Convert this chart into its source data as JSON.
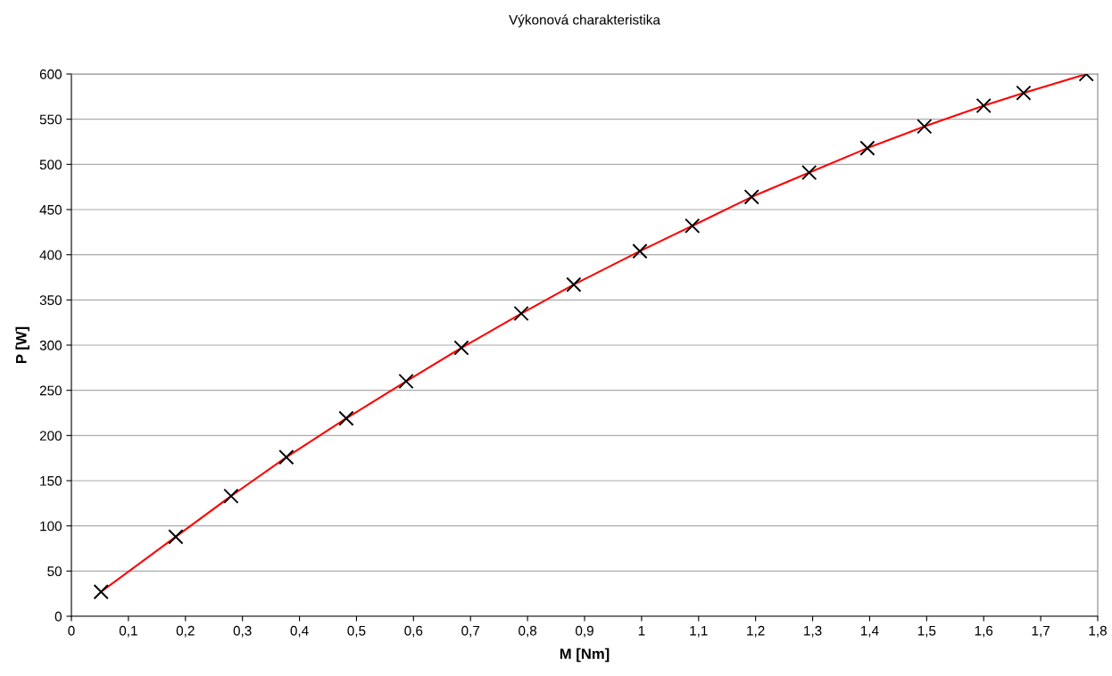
{
  "chart_data": {
    "type": "line",
    "title": "Výkonová charakteristika",
    "xlabel": "M [Nm]",
    "ylabel": "P [W]",
    "x": [
      0.052,
      0.183,
      0.28,
      0.377,
      0.482,
      0.587,
      0.684,
      0.789,
      0.881,
      0.997,
      1.089,
      1.193,
      1.294,
      1.396,
      1.496,
      1.6,
      1.67,
      1.78
    ],
    "series": [
      {
        "color": "#ff0000",
        "values": [
          27,
          88,
          133,
          176,
          219,
          260,
          297,
          335,
          367,
          404,
          432,
          464,
          491,
          518,
          542,
          565,
          579,
          600
        ]
      }
    ],
    "xlim": [
      0,
      1.8
    ],
    "ylim": [
      0,
      600
    ],
    "xticks": [
      0,
      {
        "value": 0.1,
        "label": "0,1"
      },
      {
        "value": 0.2,
        "label": "0,2"
      },
      {
        "value": 0.3,
        "label": "0,3"
      },
      {
        "value": 0.4,
        "label": "0,4"
      },
      {
        "value": 0.5,
        "label": "0,5"
      },
      {
        "value": 0.6,
        "label": "0,6"
      },
      {
        "value": 0.7,
        "label": "0,7"
      },
      {
        "value": 0.8,
        "label": "0,8"
      },
      {
        "value": 0.9,
        "label": "0,9"
      },
      1,
      {
        "value": 1.1,
        "label": "1,1"
      },
      {
        "value": 1.2,
        "label": "1,2"
      },
      {
        "value": 1.3,
        "label": "1,3"
      },
      {
        "value": 1.4,
        "label": "1,4"
      },
      {
        "value": 1.5,
        "label": "1,5"
      },
      {
        "value": 1.6,
        "label": "1,6"
      },
      {
        "value": 1.7,
        "label": "1,7"
      },
      {
        "value": 1.8,
        "label": "1,8"
      }
    ],
    "yticks": [
      0,
      50,
      100,
      150,
      200,
      250,
      300,
      350,
      400,
      450,
      500,
      550,
      600
    ],
    "grid": "y",
    "marker": "cross",
    "line_style": "solid"
  }
}
